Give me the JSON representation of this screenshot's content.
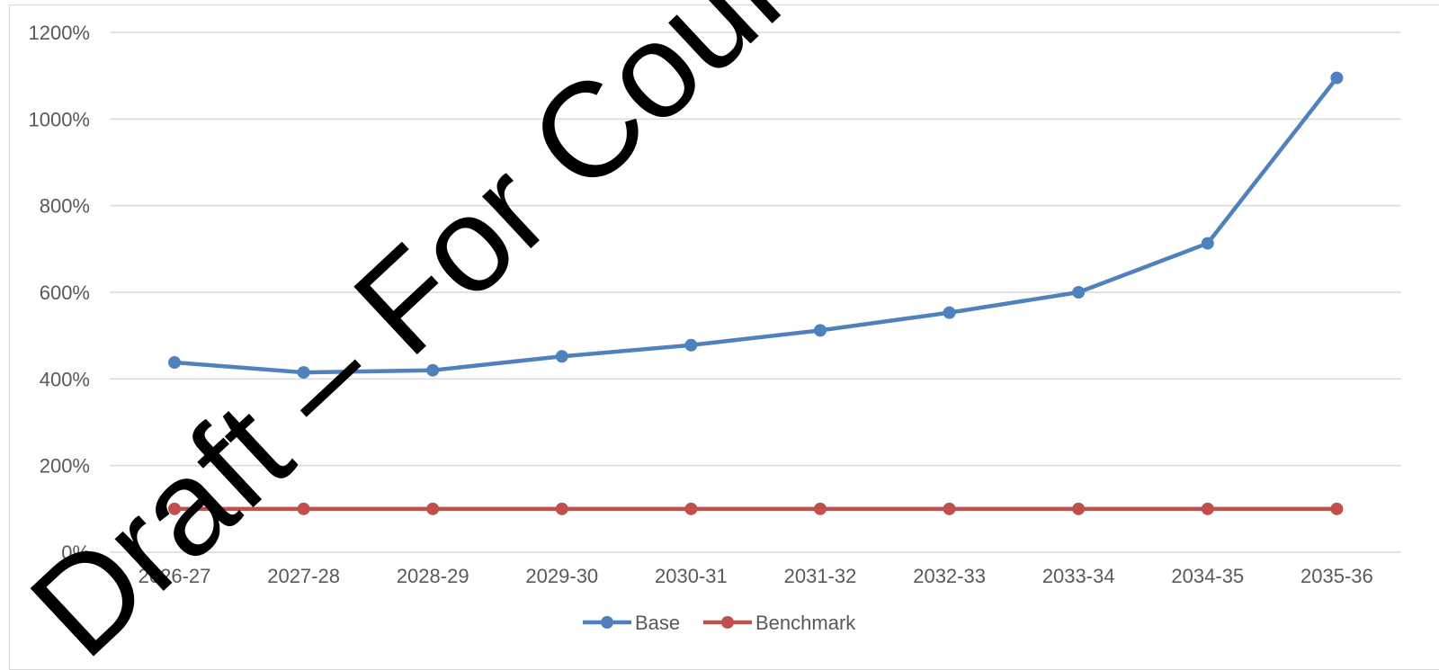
{
  "chart_data": {
    "type": "line",
    "categories": [
      "2026-27",
      "2027-28",
      "2028-29",
      "2029-30",
      "2030-31",
      "2031-32",
      "2032-33",
      "2033-34",
      "2034-35",
      "2035-36"
    ],
    "y_tick_labels": [
      "0%",
      "200%",
      "400%",
      "600%",
      "800%",
      "1000%",
      "1200%"
    ],
    "ylim": [
      0,
      12
    ],
    "y_tick_step": 2,
    "grid": true,
    "legend_position": "bottom",
    "series": [
      {
        "name": "Base",
        "color": "#4f81bd",
        "values": [
          4.38,
          4.15,
          4.2,
          4.52,
          4.78,
          5.12,
          5.53,
          6.0,
          7.13,
          10.95
        ]
      },
      {
        "name": "Benchmark",
        "color": "#c0504d",
        "values": [
          1.0,
          1.0,
          1.0,
          1.0,
          1.0,
          1.0,
          1.0,
          1.0,
          1.0,
          1.0
        ]
      }
    ]
  },
  "watermark": {
    "text": "Draft – For Council Consideration"
  }
}
